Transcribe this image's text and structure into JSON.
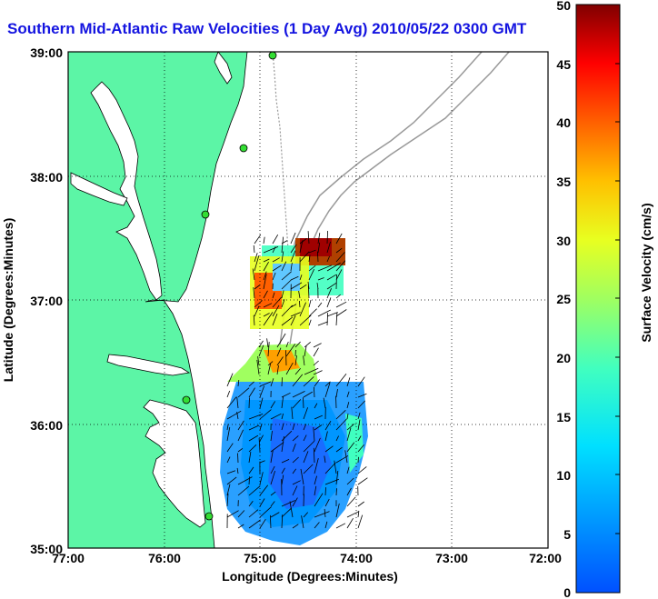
{
  "title": "Southern Mid-Atlantic Raw Velocities (1 Day Avg) 2010/05/22 0300 GMT",
  "map": {
    "xlabel": "Longitude (Degrees:Minutes)",
    "ylabel": "Latitude (Degrees:Minutes)",
    "x_ticks": [
      "77:00",
      "76:00",
      "75:00",
      "74:00",
      "73:00",
      "72:00"
    ],
    "y_ticks": [
      "39:00",
      "38:00",
      "37:00",
      "36:00",
      "35:00"
    ],
    "lon_range": [
      -77,
      -72
    ],
    "lat_range": [
      35,
      39
    ],
    "grid": "dotted"
  },
  "colorbar": {
    "label": "Surface Velocity (cm/s)",
    "min": 0,
    "max": 50,
    "ticks": [
      "50",
      "45",
      "40",
      "35",
      "30",
      "25",
      "20",
      "15",
      "10",
      "5",
      "0"
    ],
    "colormap": "jet"
  },
  "colors": {
    "land": "#5cf5a6",
    "water": "#ffffff",
    "title": "#1414e0",
    "station": "#33dd33",
    "bathymetry": "#999999"
  }
}
